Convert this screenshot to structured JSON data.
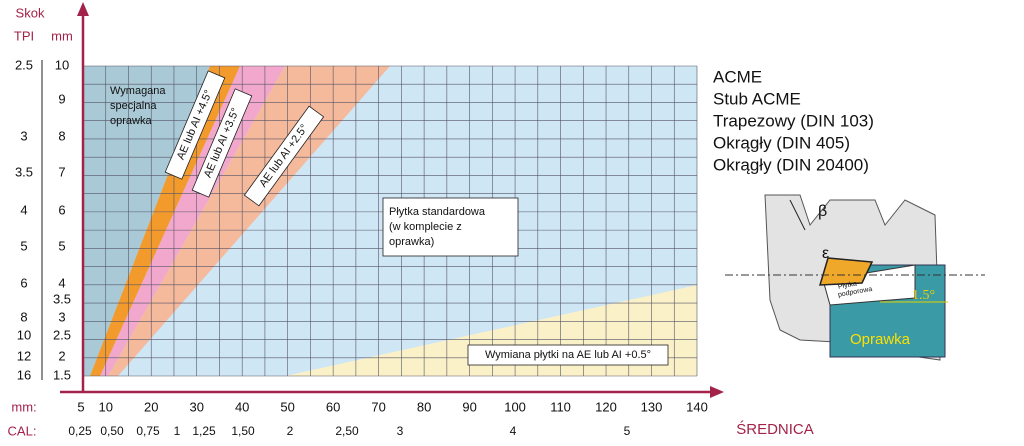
{
  "axis": {
    "y_title": "Skok",
    "tpi_label": "TPI",
    "mm_label": "mm",
    "x_mm_label": "mm:",
    "x_cal_label": "CAL:",
    "x_title": "ŚREDNICA"
  },
  "pitch_mm": [
    10,
    9,
    8,
    7,
    6,
    5,
    4,
    3.5,
    3,
    2.5,
    2,
    1.5
  ],
  "tpi": [
    2.5,
    3,
    3.5,
    4,
    5,
    6,
    8,
    10,
    12,
    16
  ],
  "diameter_mm": [
    5,
    10,
    20,
    30,
    40,
    50,
    60,
    70,
    80,
    90,
    100,
    110,
    120,
    130,
    140
  ],
  "diameter_cal": [
    "0,25",
    "0,50",
    "0,75",
    "1",
    "1,25",
    "1,50",
    "2",
    "2,50",
    "3",
    "4",
    "5"
  ],
  "regions": {
    "special": [
      "Wymagana",
      "specjalna",
      "oprawka"
    ],
    "band_45": "AE lub AI +4.5°",
    "band_35": "AE lub AI +3.5°",
    "band_25": "AE lub AI +2.5°",
    "standard": [
      "Płytka standardowa",
      "(w komplecie z",
      "oprawka)"
    ],
    "change": "Wymiana płytki na AE lub AI +0.5°"
  },
  "thread_types": [
    "ACME",
    "Stub ACME",
    "Trapezowy (DIN 103)",
    "Okrągły (DIN 405)",
    "Okrągły (DIN 20400)"
  ],
  "inset": {
    "beta": "β",
    "epsilon": "ε",
    "shim": [
      "Płytka",
      "podporowa"
    ],
    "angle": "1.5°",
    "holder": "Oprawka"
  }
}
